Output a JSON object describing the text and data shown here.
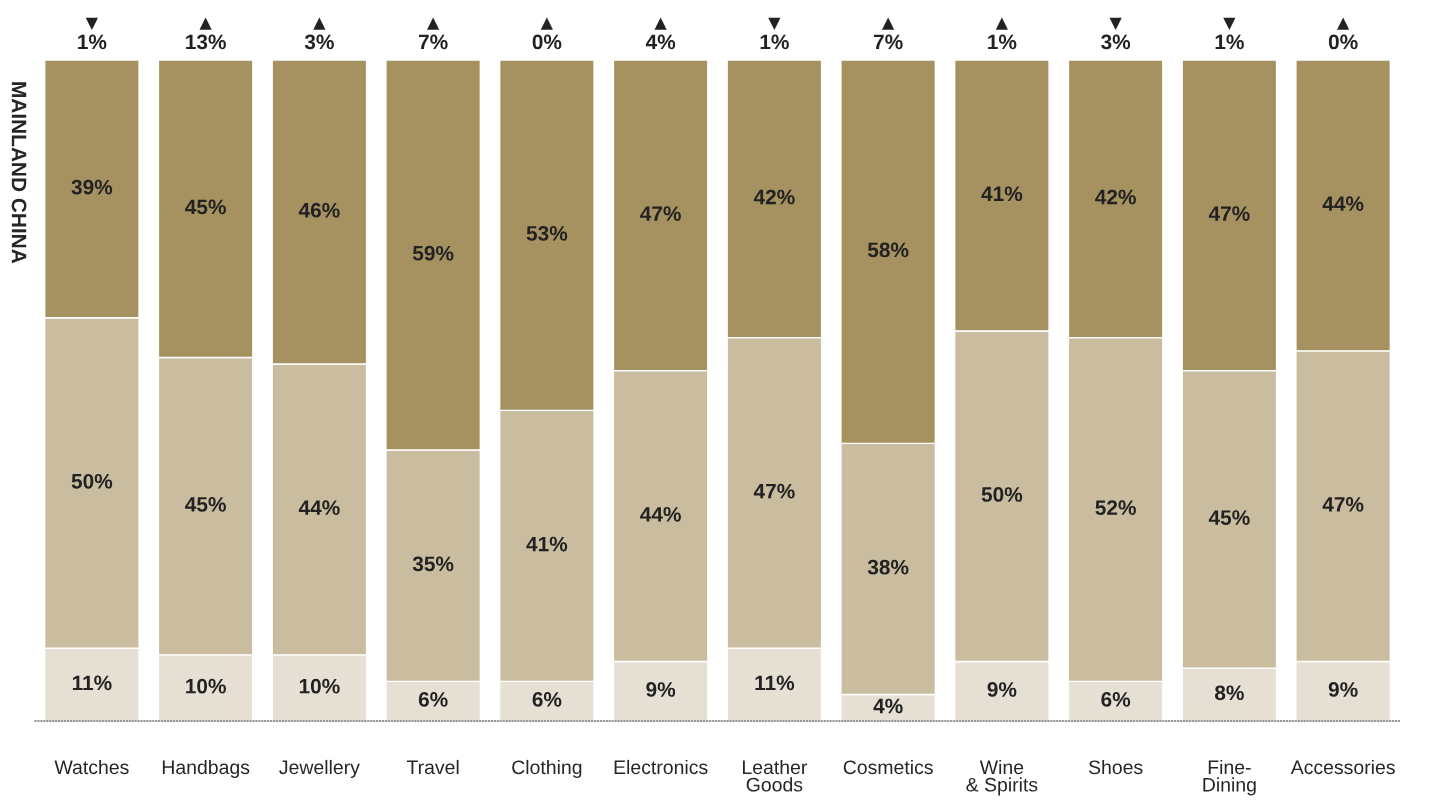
{
  "chart_data": {
    "type": "bar",
    "stacked": true,
    "ylabel": "MAINLAND CHINA",
    "categories": [
      "Watches",
      "Handbags",
      "Jewellery",
      "Travel",
      "Clothing",
      "Electronics",
      "Leather\nGoods",
      "Cosmetics",
      "Wine\n& Spirits",
      "Shoes",
      "Fine-\nDining",
      "Accessories"
    ],
    "series": [
      {
        "color": "#e6dfd3",
        "values": [
          11,
          10,
          10,
          6,
          6,
          9,
          11,
          4,
          9,
          6,
          8,
          9
        ],
        "value_labels": [
          "11%",
          "10%",
          "10%",
          "6%",
          "6%",
          "9%",
          "11%",
          "4%",
          "9%",
          "6%",
          "8%",
          "9%"
        ]
      },
      {
        "color": "#c9bc9f",
        "values": [
          50,
          45,
          44,
          35,
          41,
          44,
          47,
          38,
          50,
          52,
          45,
          47
        ],
        "value_labels": [
          "50%",
          "45%",
          "44%",
          "35%",
          "41%",
          "44%",
          "47%",
          "38%",
          "50%",
          "52%",
          "45%",
          "47%"
        ]
      },
      {
        "color": "#a69260",
        "values": [
          39,
          45,
          46,
          59,
          53,
          47,
          42,
          58,
          41,
          42,
          47,
          44
        ],
        "value_labels": [
          "39%",
          "45%",
          "46%",
          "59%",
          "53%",
          "47%",
          "42%",
          "58%",
          "41%",
          "42%",
          "47%",
          "44%"
        ]
      }
    ],
    "annotations": [
      "▼\n1%",
      "▲\n13%",
      "▲\n3%",
      "▲\n7%",
      "▲\n0%",
      "▲\n4%",
      "▼\n1%",
      "▲\n7%",
      "▲\n1%",
      "▼\n3%",
      "▼\n1%",
      "▲\n0%"
    ]
  }
}
